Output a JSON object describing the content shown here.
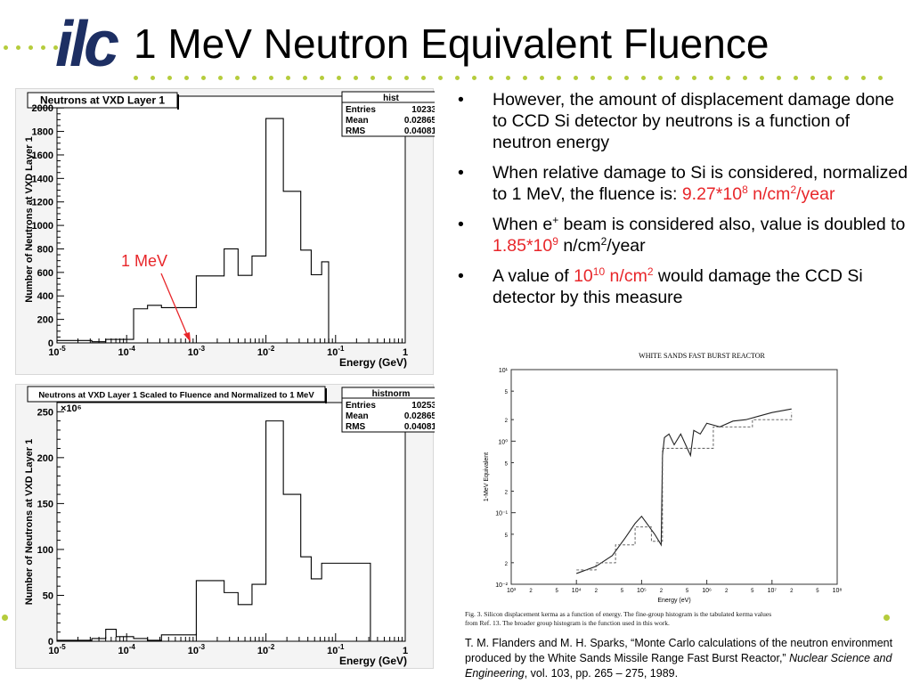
{
  "logo": {
    "text": "ilc"
  },
  "slide": {
    "title": "1 MeV Neutron Equivalent Fluence"
  },
  "plot1": {
    "title": "Neutrons at VXD Layer 1",
    "stats": {
      "name": "hist",
      "entries_label": "Entries",
      "entries": "10233",
      "mean_label": "Mean",
      "mean": "0.02865",
      "rms_label": "RMS",
      "rms": "0.04081"
    },
    "ylabel": "Number of Neutrons at VXD Layer 1",
    "xlabel": "Energy (GeV)",
    "annotation": "1 MeV",
    "yticks": [
      "0",
      "200",
      "400",
      "600",
      "800",
      "1000",
      "1200",
      "1400",
      "1600",
      "1800",
      "2000"
    ],
    "xticks": [
      "10-5",
      "10-4",
      "10-3",
      "10-2",
      "10-1",
      "1"
    ]
  },
  "plot2": {
    "title": "Neutrons at VXD Layer 1 Scaled to Fluence and Normalized to 1 MeV",
    "stats": {
      "name": "histnorm",
      "entries_label": "Entries",
      "entries": "10253",
      "mean_label": "Mean",
      "mean": "0.02865",
      "rms_label": "RMS",
      "rms": "0.04081"
    },
    "ylabel": "Number of Neutrons at VXD Layer 1",
    "xlabel": "Energy (GeV)",
    "multiplier": "×10⁶",
    "yticks": [
      "0",
      "50",
      "100",
      "150",
      "200",
      "250"
    ],
    "xticks": [
      "10-5",
      "10-4",
      "10-3",
      "10-2",
      "10-1",
      "1"
    ]
  },
  "chart_data": [
    {
      "type": "bar",
      "title": "Neutrons at VXD Layer 1",
      "xlabel": "Energy (GeV)",
      "ylabel": "Number of Neutrons at VXD Layer 1",
      "x_scale": "log",
      "xlim": [
        1e-05,
        1
      ],
      "ylim": [
        0,
        2100
      ],
      "bin_edges_log10": [
        -5,
        -4.5,
        -4.3,
        -3.9,
        -3.7,
        -3.5,
        -3,
        -2.6,
        -2.4,
        -2.2,
        -2,
        -1.75,
        -1.5,
        -1.35,
        -1.2,
        -1.1,
        -0.5,
        0
      ],
      "values": [
        20,
        10,
        30,
        290,
        320,
        300,
        570,
        800,
        575,
        740,
        1910,
        1290,
        790,
        580,
        690,
        0,
        0
      ]
    },
    {
      "type": "bar",
      "title": "Neutrons at VXD Layer 1 Scaled to Fluence and Normalized to 1 MeV",
      "xlabel": "Energy (GeV)",
      "ylabel": "Number of Neutrons at VXD Layer 1",
      "x_scale": "log",
      "xlim": [
        1e-05,
        1
      ],
      "ylim": [
        0,
        260
      ],
      "y_multiplier": "10^6",
      "bin_edges_log10": [
        -5,
        -4.5,
        -4.3,
        -4.15,
        -3.9,
        -3.7,
        -3.5,
        -3,
        -2.6,
        -2.4,
        -2.2,
        -2,
        -1.75,
        -1.5,
        -1.35,
        -1.2,
        -0.5,
        0
      ],
      "values": [
        1,
        3,
        13,
        5,
        3,
        1,
        7,
        66,
        53,
        40,
        62,
        240,
        160,
        92,
        68,
        85,
        0
      ]
    }
  ],
  "bullets": [
    {
      "parts": [
        {
          "t": "However, the amount of displacement damage done to CCD Si detector by neutrons is a function of neutron energy"
        }
      ]
    },
    {
      "parts": [
        {
          "t": "When relative damage to Si is considered, normalized to 1 MeV, the fluence is: "
        },
        {
          "t": "9.27*10",
          "red": true
        },
        {
          "t": "8",
          "red": true,
          "sup": true
        },
        {
          "t": " n/cm",
          "red": true
        },
        {
          "t": "2",
          "red": true,
          "sup": true
        },
        {
          "t": "/year",
          "red": true
        }
      ]
    },
    {
      "parts": [
        {
          "t": "When e"
        },
        {
          "t": "+",
          "sup": true
        },
        {
          "t": " beam is considered also, value is doubled to "
        },
        {
          "t": "1.85*10",
          "red": true
        },
        {
          "t": "9",
          "red": true,
          "sup": true
        },
        {
          "t": " n/cm"
        },
        {
          "t": "2",
          "sup": true
        },
        {
          "t": "/year"
        }
      ]
    },
    {
      "parts": [
        {
          "t": "A value of "
        },
        {
          "t": "10",
          "red": true
        },
        {
          "t": "10",
          "red": true,
          "sup": true
        },
        {
          "t": " n/cm",
          "red": true
        },
        {
          "t": "2",
          "red": true,
          "sup": true
        },
        {
          "t": " would damage the CCD Si detector by this measure"
        }
      ]
    }
  ],
  "reactor_figure": {
    "title": "WHITE SANDS FAST BURST REACTOR",
    "ylabel": "1-MeV Equivalent",
    "xlabel": "Energy (eV)",
    "caption": "Fig. 3. Silicon displacement kerma as a function of energy. The fine-group histogram is the tabulated kerma values from Ref. 13. The broader group histogram is the function used in this work.",
    "yticks": [
      "10⁻²",
      "10⁻¹",
      "10⁰",
      "10¹"
    ],
    "xticks": [
      "10³",
      "10⁴",
      "10⁵",
      "10⁶",
      "10⁷",
      "10⁸"
    ]
  },
  "citation": {
    "text": "T. M. Flanders and M. H. Sparks, “Monte Carlo calculations of the neutron environment produced by the White Sands Missile Range Fast Burst Reactor,”",
    "journal": "Nuclear Science and Engineering",
    "rest": ", vol. 103, pp. 265 – 275, 1989."
  }
}
